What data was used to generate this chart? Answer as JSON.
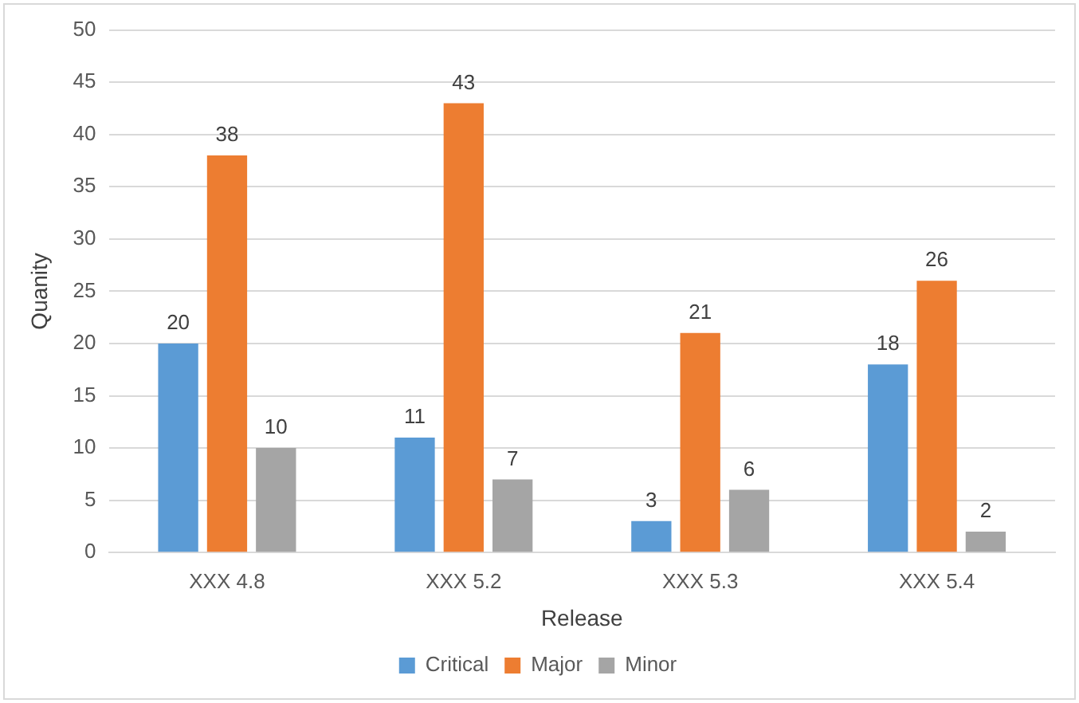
{
  "chart_data": {
    "type": "bar",
    "xlabel": "Release",
    "ylabel": "Quanity",
    "categories": [
      "XXX 4.8",
      "XXX 5.2",
      "XXX 5.3",
      "XXX 5.4"
    ],
    "series": [
      {
        "name": "Critical",
        "color": "#5b9bd5",
        "values": [
          20,
          11,
          3,
          18
        ]
      },
      {
        "name": "Major",
        "color": "#ed7d31",
        "values": [
          38,
          43,
          21,
          26
        ]
      },
      {
        "name": "Minor",
        "color": "#a5a5a5",
        "values": [
          10,
          7,
          6,
          2
        ]
      }
    ],
    "ylim": [
      0,
      50
    ],
    "yticks": [
      0,
      5,
      10,
      15,
      20,
      25,
      30,
      35,
      40,
      45,
      50
    ],
    "grid": "y",
    "legend": "bottom",
    "data_labels": true
  }
}
